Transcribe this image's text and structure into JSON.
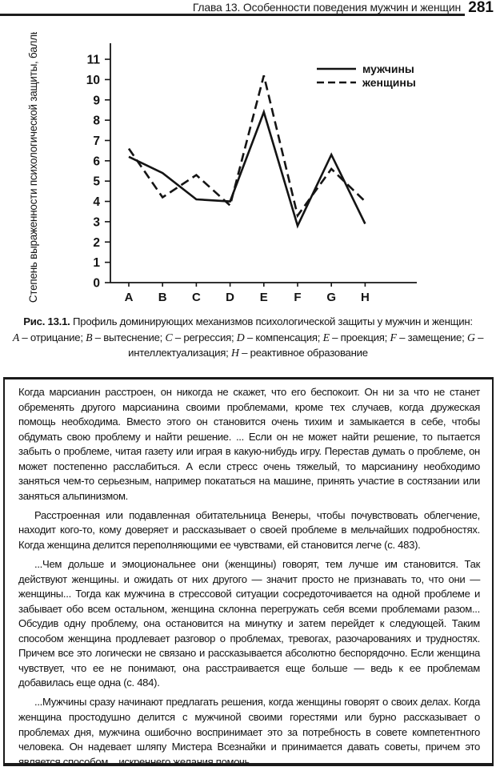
{
  "header": {
    "chapter": "Глава 13. Особенности поведения мужчин и женщин",
    "page_number": "281"
  },
  "chart_data": {
    "type": "line",
    "categories": [
      "A",
      "B",
      "C",
      "D",
      "E",
      "F",
      "G",
      "H"
    ],
    "series": [
      {
        "name": "мужчины",
        "style": "solid",
        "values": [
          6.2,
          5.4,
          4.1,
          4.0,
          8.4,
          2.8,
          6.3,
          2.9
        ]
      },
      {
        "name": "женщины",
        "style": "dashed",
        "values": [
          6.6,
          4.2,
          5.3,
          3.8,
          10.2,
          3.3,
          5.6,
          4.0
        ]
      }
    ],
    "title": "",
    "xlabel": "",
    "ylabel": "Степень выраженности психологической защиты, баллы",
    "ylim": [
      0,
      11
    ],
    "yticks": [
      0,
      1,
      2,
      3,
      4,
      5,
      6,
      7,
      8,
      9,
      10,
      11
    ],
    "grid": false,
    "legend_position": "top-right",
    "line_color": "#141414"
  },
  "caption": {
    "label": "Рис. 13.1.",
    "title": "Профиль доминирующих механизмов психологической защиты у мужчин и женщин:",
    "separator": " – ",
    "legend_items": [
      {
        "key": "A",
        "text": "отрицание"
      },
      {
        "key": "B",
        "text": "вытеснение"
      },
      {
        "key": "C",
        "text": "регрессия"
      },
      {
        "key": "D",
        "text": "компенсация"
      },
      {
        "key": "E",
        "text": "проекция"
      },
      {
        "key": "F",
        "text": "замещение"
      },
      {
        "key": "G",
        "text": "интеллектуализация"
      },
      {
        "key": "H",
        "text": "реактивное образование"
      }
    ]
  },
  "quote_box": {
    "paragraphs": [
      {
        "indent": false,
        "text": "Когда марсианин расстроен, он никогда не скажет, что его беспокоит. Он ни за что не станет обременять другого марсианина своими проблемами, кроме тех случаев, когда дружеская помощь необходима. Вместо этого он становится очень тихим и замыкается в себе, чтобы обдумать свою проблему и найти решение. ... Если он не может найти решение, то пытается забыть о проблеме, читая газету или играя в какую-нибудь игру. Перестав думать о проблеме, он может постепенно расслабиться. А если стресс очень тяжелый, то марсианину необходимо заняться чем-то серьезным, например покататься на машине, принять участие в состязании или заняться альпинизмом."
      },
      {
        "indent": true,
        "text": "Расстроенная или подавленная обитательница Венеры, чтобы почувствовать облегчение, находит кого-то, кому доверяет и рассказывает о своей проблеме в мельчайших подробностях. Когда женщина делится переполняющими ее чувствами, ей становится легче (с. 483)."
      },
      {
        "indent": true,
        "text": "...Чем дольше и эмоциональнее они (женщины) говорят, тем лучше им становится. Так действуют женщины. и ожидать от них другого — значит просто не признавать то, что они — женщины... Тогда как мужчина в стрессовой ситуации сосредоточивается на одной проблеме и забывает обо всем остальном, женщина склонна перегружать себя всеми проблемами разом... Обсудив одну проблему, она остановится на минутку и затем перейдет к следующей. Таким способом женщина продлевает разговор о проблемах, тревогах, разочарованиях и трудностях. Причем все это логически не связано и рассказывается абсолютно беспорядочно. Если женщина чувствует, что ее не понимают, она расстраивается еще больше — ведь к ее проблемам добавилась еще одна (с. 484)."
      },
      {
        "indent": true,
        "text": "...Мужчины сразу начинают предлагать решения, когда женщины говорят о своих делах. Когда женщина простодушно делится с мужчиной своими горестями или бурно рассказывает о проблемах дня, мужчина ошибочно воспринимает это за потребность в совете компетентного человека. Он надевает шляпу Мистера Всезнайки и принимается давать советы, причем это является способом... искреннего желания помочь."
      }
    ]
  }
}
